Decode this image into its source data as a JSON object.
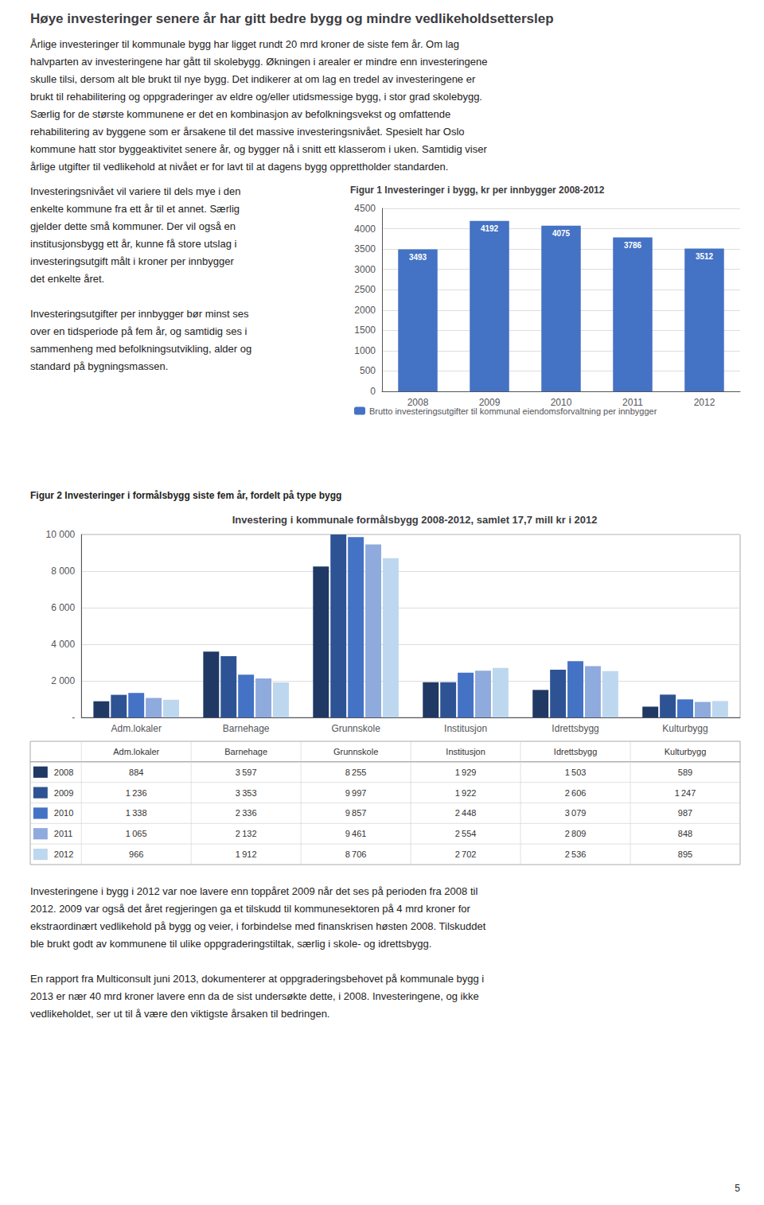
{
  "title": "Høye investeringer senere år har gitt bedre bygg og mindre vedlikeholdsetterslep",
  "annotations": [
    [
      "Årlige investeringer til kommunale bygg har ligget rundt 20 mrd kroner de siste fem år. Om lag",
      "halvparten av investeringene har gått til skolebygg. Økningen i arealer er mindre enn investeringene",
      "skulle tilsi, dersom alt ble brukt til nye bygg. Det indikerer at om lag en tredel av investeringene er",
      "brukt til rehabilitering og oppgraderinger av eldre og/eller utidsmessige bygg, i stor grad skolebygg.",
      "Særlig for de største kommunene er det en kombinasjon av befolkningsvekst og omfattende",
      "rehabilitering av byggene som er årsakene til det massive investeringsnivået. Spesielt har Oslo",
      "kommune hatt stor byggeaktivitet senere år, og bygger nå i snitt ett klasserom i uken. Samtidig viser",
      "årlige utgifter til vedlikehold at nivået er for lavt til at dagens bygg opprettholder standarden."
    ],
    [
      "Investeringsnivået vil variere til dels mye i den",
      "enkelte kommune fra ett år til et annet. Særlig",
      "gjelder dette små kommuner. Der vil også en",
      "institusjonsbygg ett år, kunne få store utslag i",
      "investeringsutgift målt i kroner per innbygger",
      "det enkelte året."
    ],
    [
      "Investeringsutgifter per innbygger bør minst ses",
      "over en tidsperiode på fem år, og samtidig ses i",
      "sammenheng med befolkningsutvikling, alder og",
      "standard på bygningsmassen."
    ],
    [
      "Investeringene i bygg i 2012 var noe lavere enn toppåret 2009 når det ses på perioden fra 2008 til",
      "2012. 2009 var også det året regjeringen ga et tilskudd til kommunesektoren på 4 mrd kroner for",
      "ekstraordinært vedlikehold på bygg og veier, i forbindelse med finanskrisen høsten 2008. Tilskuddet",
      "ble brukt godt av kommunene til ulike oppgraderingstiltak, særlig i skole- og idrettsbygg."
    ],
    [
      "En rapport fra Multiconsult juni 2013, dokumenterer at oppgraderingsbehovet på kommunale bygg i",
      "2013 er nær 40 mrd kroner lavere enn da de sist undersøkte dette, i 2008. Investeringene, og ikke",
      "vedlikeholdet, ser ut til å være den viktigste årsaken til bedringen."
    ],
    [
      "5"
    ]
  ],
  "chart_data": [
    {
      "type": "bar",
      "title": "Figur 1 Investeringer i bygg, kr per innbygger 2008-2012",
      "categories": [
        "2008",
        "2009",
        "2010",
        "2011",
        "2012"
      ],
      "series": [
        {
          "name": "Brutto investeringsutgifter til kommunal eiendomsforvaltning per innbygger",
          "color": "#4472C4",
          "values": [
            3493,
            4192,
            4075,
            3786,
            3512
          ]
        }
      ],
      "ylim": [
        0,
        4500
      ],
      "yticks": [
        0,
        500,
        1000,
        1500,
        2000,
        2500,
        3000,
        3500,
        4000,
        4500
      ],
      "grid": true,
      "legend": "bottom",
      "data_labels": true
    },
    {
      "type": "bar",
      "title": "Investering i kommunale formålsbygg 2008-2012, samlet 17,7 mill kr i 2012",
      "annotations": [
        "Figur 2 Investeringer i formålsbygg siste fem år, fordelt på type bygg"
      ],
      "categories": [
        "Adm.lokaler",
        "Barnehage",
        "Grunnskole",
        "Institusjon",
        "Idrettsbygg",
        "Kulturbygg"
      ],
      "series": [
        {
          "name": "2008",
          "color": "#1F3864",
          "values": [
            884,
            3597,
            8255,
            1929,
            1503,
            589
          ],
          "value_labels": [
            "884",
            "3 597",
            "8 255",
            "1 929",
            "1 503",
            "589"
          ]
        },
        {
          "name": "2009",
          "color": "#2E5394",
          "values": [
            1236,
            3353,
            9997,
            1922,
            2606,
            1247
          ],
          "value_labels": [
            "1 236",
            "3 353",
            "9 997",
            "1 922",
            "2 606",
            "1 247"
          ]
        },
        {
          "name": "2010",
          "color": "#4472C4",
          "values": [
            1338,
            2336,
            9857,
            2448,
            3079,
            987
          ],
          "value_labels": [
            "1 338",
            "2 336",
            "9 857",
            "2 448",
            "3 079",
            "987"
          ]
        },
        {
          "name": "2011",
          "color": "#8FAADC",
          "values": [
            1065,
            2132,
            9461,
            2554,
            2809,
            848
          ],
          "value_labels": [
            "1 065",
            "2 132",
            "9 461",
            "2 554",
            "2 809",
            "848"
          ]
        },
        {
          "name": "2012",
          "color": "#BDD7EE",
          "values": [
            966,
            1912,
            8706,
            2702,
            2536,
            895
          ],
          "value_labels": [
            "966",
            "1 912",
            "8 706",
            "2 702",
            "2 536",
            "895"
          ]
        }
      ],
      "ylim": [
        0,
        10000
      ],
      "yticks": [
        {
          "value": 0,
          "label": "-"
        },
        {
          "value": 2000,
          "label": "2 000"
        },
        {
          "value": 4000,
          "label": "4 000"
        },
        {
          "value": 6000,
          "label": "6 000"
        },
        {
          "value": 8000,
          "label": "8 000"
        },
        {
          "value": 10000,
          "label": "10 000"
        }
      ],
      "grid": true
    }
  ]
}
